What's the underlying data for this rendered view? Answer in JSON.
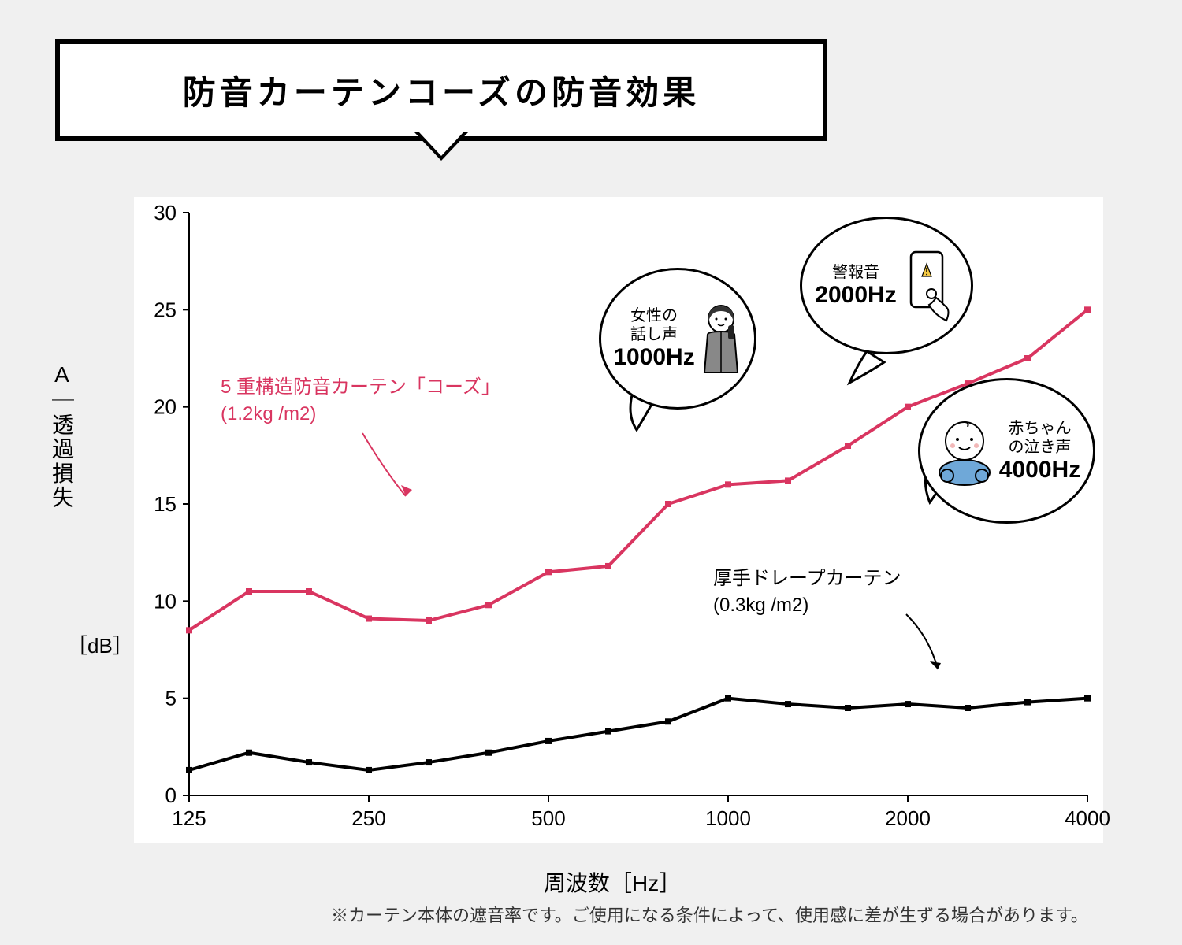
{
  "title": "防音カーテンコーズの防音効果",
  "chart": {
    "type": "line",
    "background_color": "#ffffff",
    "page_background": "#f0f0f0",
    "x_label": "周波数［Hz］",
    "y_label": "A｜透過損失",
    "y_unit": "［dB］",
    "ylim": [
      0,
      30
    ],
    "ytick_step": 5,
    "y_ticks": [
      0,
      5,
      10,
      15,
      20,
      25,
      30
    ],
    "x_ticks_labels": [
      "125",
      "250",
      "500",
      "1000",
      "2000",
      "4000"
    ],
    "x_ticks_positions": [
      0,
      3,
      6,
      9,
      12,
      15
    ],
    "x_point_count": 16,
    "axis_color": "#000000",
    "axis_width": 2,
    "series": [
      {
        "name": "coze",
        "label_line1": "5 重構造防音カーテン「コーズ」",
        "label_line2": "(1.2kg /m2)",
        "color": "#d93560",
        "line_width": 4,
        "marker": "square",
        "marker_size": 8,
        "values": [
          8.5,
          10.5,
          10.5,
          9.1,
          9.0,
          9.8,
          11.5,
          11.8,
          15.0,
          16.0,
          16.2,
          18.0,
          20.0,
          21.2,
          22.5,
          25.0
        ]
      },
      {
        "name": "drape",
        "label_line1": "厚手ドレープカーテン",
        "label_line2": "(0.3kg /m2)",
        "color": "#000000",
        "line_width": 4,
        "marker": "square",
        "marker_size": 8,
        "values": [
          1.3,
          2.2,
          1.7,
          1.3,
          1.7,
          2.2,
          2.8,
          3.3,
          3.8,
          5.0,
          4.7,
          4.5,
          4.7,
          4.5,
          4.8,
          5.0
        ]
      }
    ],
    "annotations": [
      {
        "id": "voice",
        "text_small": "女性の\n話し声",
        "hz": "1000Hz"
      },
      {
        "id": "alarm",
        "text_small": "警報音",
        "hz": "2000Hz"
      },
      {
        "id": "baby",
        "text_small": "赤ちゃん\nの泣き声",
        "hz": "4000Hz"
      }
    ]
  },
  "footnote": "※カーテン本体の遮音率です。ご使用になる条件によって、使用感に差が生ずる場合があります。"
}
